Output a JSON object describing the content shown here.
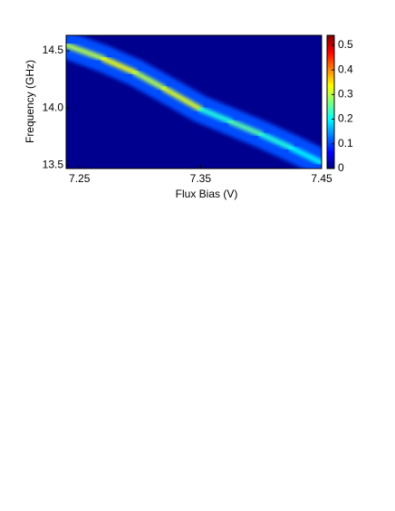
{
  "chart_data": {
    "type": "heatmap",
    "xlabel": "Flux Bias (V)",
    "ylabel": "Frequency (GHz)",
    "xlim": [
      7.239,
      7.45
    ],
    "ylim": [
      13.47,
      14.635
    ],
    "xticks": [
      7.25,
      7.35,
      7.45
    ],
    "yticks": [
      13.5,
      {
        "value": 14,
        "label": "14.0"
      },
      14.5
    ],
    "x": [
      7.239,
      7.27,
      7.296,
      7.32,
      7.35,
      7.375,
      7.4,
      7.425,
      7.45
    ],
    "values": [
      14.55,
      14.43,
      14.31,
      14.17,
      13.99,
      13.88,
      13.77,
      13.65,
      13.52
    ],
    "intensity": [
      0.3,
      0.33,
      0.3,
      0.32,
      0.22,
      0.25,
      0.22,
      0.2,
      0.18
    ],
    "background": "#00008f",
    "clim": [
      0,
      0.54
    ],
    "cticks": [
      0,
      0.1,
      0.2,
      0.3,
      0.4,
      0.5
    ]
  }
}
